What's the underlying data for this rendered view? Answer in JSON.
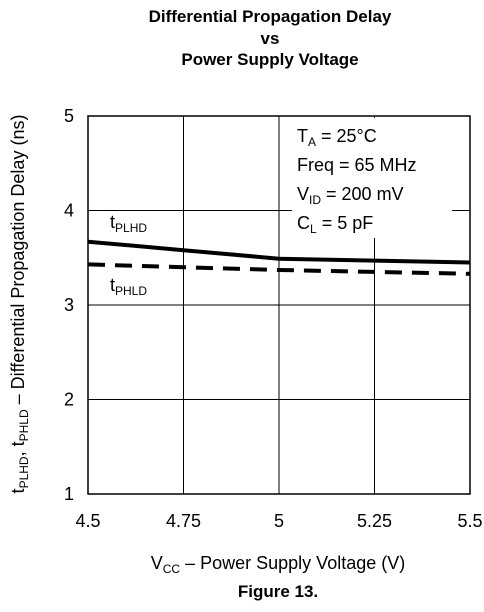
{
  "chart_data": {
    "type": "line",
    "title_lines": [
      "Differential Propagation Delay",
      "vs",
      "Power Supply Voltage"
    ],
    "xlabel": {
      "main": "V",
      "sub": "CC",
      "rest": " – Power Supply Voltage (V)"
    },
    "ylabel": {
      "p1": "t",
      "s1": "PLHD",
      "p2": ", t",
      "s2": "PHLD",
      "rest": " – Differential Propagation Delay (ns)"
    },
    "xlim": [
      4.5,
      5.5
    ],
    "ylim": [
      1,
      5
    ],
    "x_ticks": [
      4.5,
      4.75,
      5,
      5.25,
      5.5
    ],
    "x_tick_labels": [
      "4.5",
      "4.75",
      "5",
      "5.25",
      "5.5"
    ],
    "y_ticks": [
      1,
      2,
      3,
      4,
      5
    ],
    "y_tick_labels": [
      "1",
      "2",
      "3",
      "4",
      "5"
    ],
    "grid": true,
    "series": [
      {
        "name_main": "t",
        "name_sub": "PLHD",
        "style": "solid",
        "x": [
          4.5,
          4.75,
          5.0,
          5.25,
          5.5
        ],
        "y": [
          3.67,
          3.58,
          3.49,
          3.47,
          3.45
        ]
      },
      {
        "name_main": "t",
        "name_sub": "PHLD",
        "style": "dashed",
        "x": [
          4.5,
          4.75,
          5.0,
          5.25,
          5.5
        ],
        "y": [
          3.43,
          3.4,
          3.37,
          3.35,
          3.33
        ]
      }
    ],
    "conditions": [
      {
        "main": "T",
        "sub": "A",
        "rest": " = 25°C"
      },
      {
        "main": "Freq = 65 MHz",
        "sub": "",
        "rest": ""
      },
      {
        "main": "V",
        "sub": "ID",
        "rest": " = 200 mV"
      },
      {
        "main": "C",
        "sub": "L",
        "rest": " = 5 pF"
      }
    ],
    "figure_caption": "Figure 13.",
    "colors": {
      "line": "#000000",
      "grid": "#000000",
      "background": "#ffffff"
    }
  }
}
